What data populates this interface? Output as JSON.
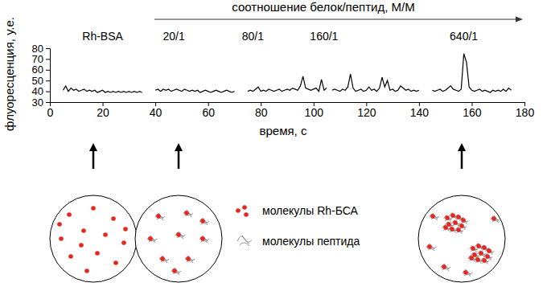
{
  "chart_data": {
    "type": "line",
    "title": "соотношение белок/пептид, М/М",
    "x_label": "время, с",
    "y_label": "флуоресценция, у.е.",
    "xlim": [
      0,
      180
    ],
    "xticks": [
      0,
      20,
      40,
      60,
      80,
      100,
      120,
      140,
      160,
      180
    ],
    "ylim": [
      30,
      80
    ],
    "yticks": [
      30,
      40,
      50,
      60,
      70,
      80
    ],
    "grid": false,
    "annotations": [
      {
        "text": "Rh-BSA",
        "x": 20
      },
      {
        "text": "20/1",
        "x": 47
      },
      {
        "text": "80/1",
        "x": 77
      },
      {
        "text": "160/1",
        "x": 104
      },
      {
        "text": "640/1",
        "x": 157
      }
    ],
    "x": [
      5,
      6,
      7,
      8,
      9,
      10,
      11,
      12,
      13,
      14,
      15,
      16,
      17,
      18,
      19,
      20,
      21,
      22,
      23,
      24,
      25,
      26,
      27,
      28,
      29,
      30,
      31,
      32,
      33,
      34,
      35,
      36,
      37,
      38,
      39,
      40,
      41,
      42,
      43,
      44,
      45,
      46,
      47,
      48,
      49,
      50,
      51,
      52,
      53,
      54,
      55,
      56,
      57,
      58,
      59,
      60,
      61,
      62,
      63,
      64,
      65,
      66,
      67,
      68,
      69,
      70,
      71,
      72,
      73,
      74,
      75,
      76,
      77,
      78,
      79,
      80,
      81,
      82,
      83,
      84,
      85,
      86,
      87,
      88,
      89,
      90,
      91,
      92,
      93,
      94,
      95,
      96,
      97,
      98,
      99,
      100,
      101,
      102,
      103,
      104,
      105,
      106,
      107,
      108,
      109,
      110,
      111,
      112,
      113,
      114,
      115,
      116,
      117,
      118,
      119,
      120,
      121,
      122,
      123,
      124,
      125,
      126,
      127,
      128,
      129,
      130,
      131,
      132,
      133,
      134,
      135,
      136,
      137,
      138,
      139,
      140,
      141,
      142,
      143,
      144,
      145,
      146,
      147,
      148,
      149,
      150,
      151,
      152,
      153,
      154,
      155,
      156,
      157,
      158,
      159,
      160,
      161,
      162,
      163,
      164,
      165,
      166,
      167,
      168,
      169,
      170,
      171,
      172,
      173,
      174,
      175
    ],
    "series": [
      {
        "color": "#000000",
        "line_style": "solid",
        "values": [
          41,
          45,
          40,
          43,
          41,
          42,
          40,
          41,
          42,
          40,
          41,
          40,
          41,
          39,
          40,
          41,
          39,
          40,
          39,
          40,
          39,
          40,
          39,
          40,
          39,
          40,
          39,
          40,
          39,
          40,
          39,
          null,
          null,
          null,
          null,
          41,
          42,
          40,
          42,
          41,
          42,
          40,
          41,
          42,
          41,
          40,
          42,
          41,
          40,
          41,
          40,
          41,
          39,
          40,
          41,
          40,
          39,
          40,
          41,
          40,
          39,
          40,
          41,
          40,
          39,
          40,
          null,
          null,
          null,
          null,
          40,
          41,
          40,
          42,
          44,
          40,
          41,
          40,
          42,
          41,
          40,
          41,
          42,
          40,
          41,
          42,
          41,
          43,
          42,
          41,
          45,
          54,
          43,
          42,
          41,
          42,
          43,
          40,
          51,
          41,
          43,
          null,
          41,
          42,
          41,
          40,
          42,
          41,
          44,
          56,
          43,
          40,
          41,
          42,
          40,
          41,
          44,
          41,
          42,
          40,
          43,
          53,
          44,
          50,
          41,
          42,
          40,
          41,
          45,
          43,
          41,
          42,
          40,
          41,
          40,
          41,
          null,
          null,
          null,
          null,
          41,
          40,
          41,
          42,
          40,
          41,
          43,
          45,
          42,
          41,
          40,
          42,
          75,
          67,
          44,
          41,
          40,
          41,
          42,
          40,
          41,
          40,
          39,
          41,
          40,
          41,
          40,
          42,
          40,
          43,
          41
        ]
      }
    ]
  },
  "diagram": {
    "legend": [
      {
        "label": "молекулы Rh-БСА"
      },
      {
        "label": "молекулы пептида"
      }
    ]
  }
}
